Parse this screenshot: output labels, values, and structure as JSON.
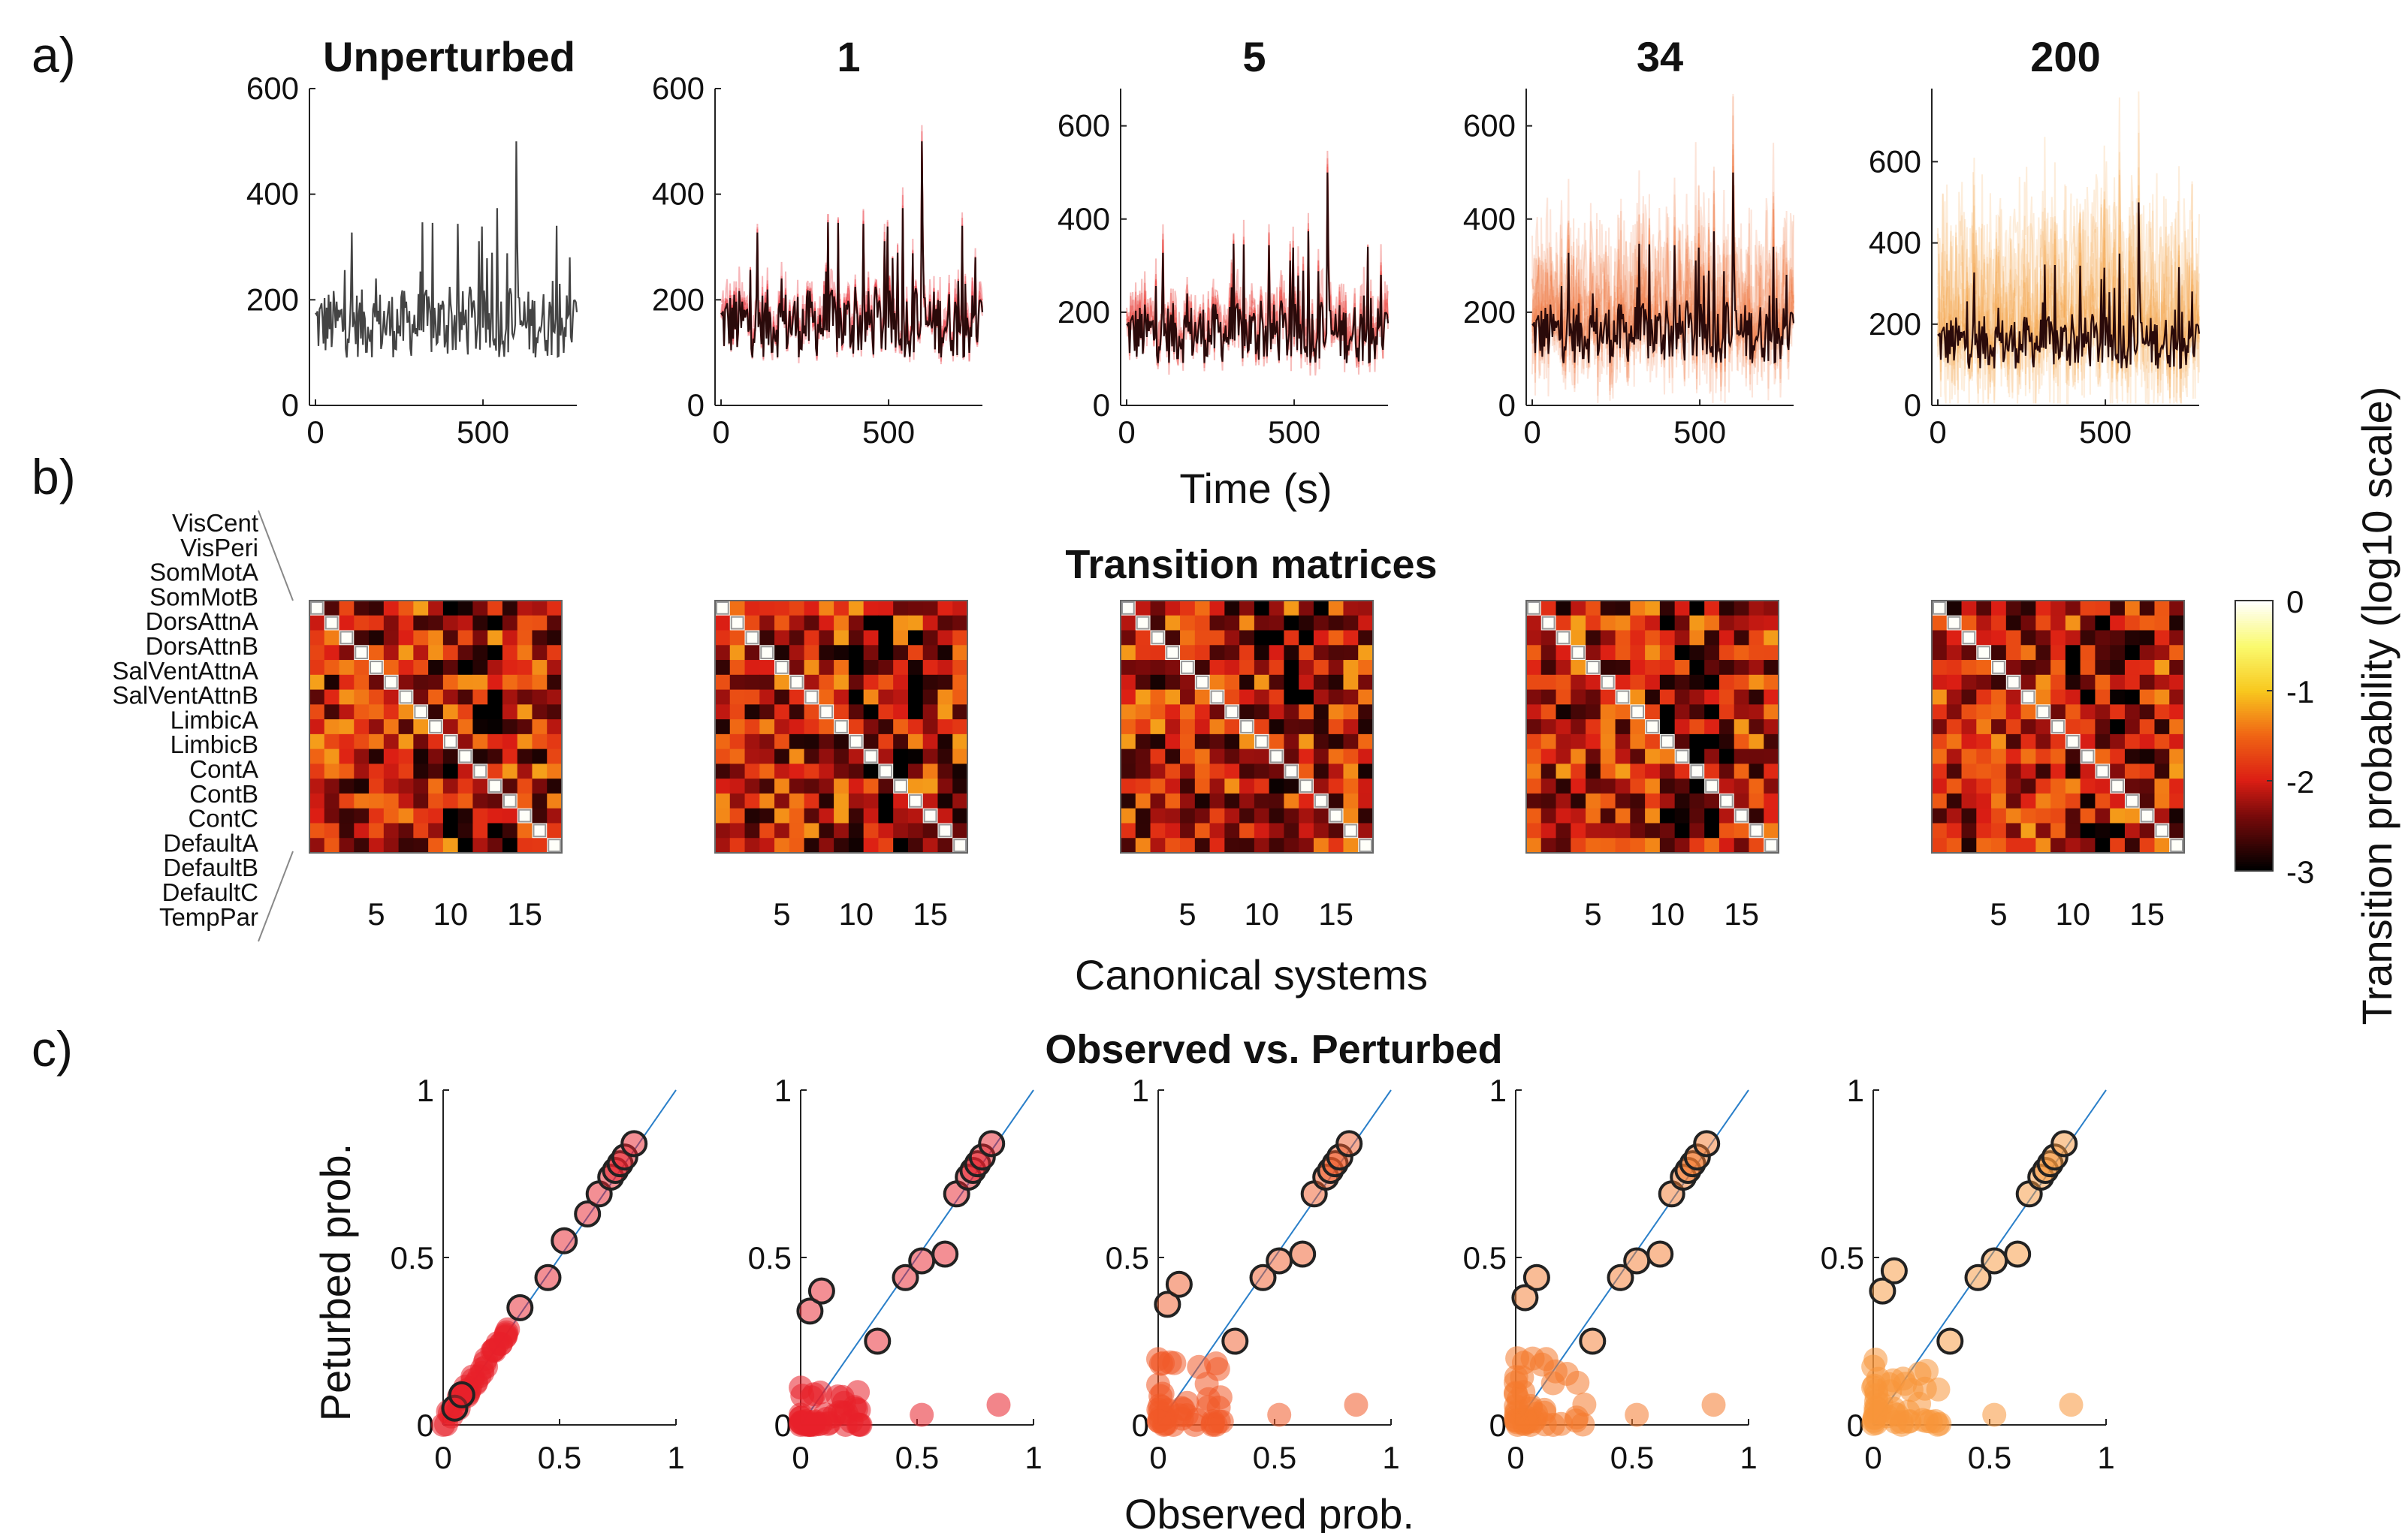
{
  "panel_labels": [
    "a)",
    "b)",
    "c)"
  ],
  "panel_a": {
    "x_axis_label": "Time (s)",
    "x_ticks": [
      "0",
      "500"
    ],
    "columns": [
      {
        "title": "Unperturbed",
        "y_ticks": [
          "0",
          "200",
          "400",
          "600"
        ],
        "ylim": [
          0,
          600
        ]
      },
      {
        "title": "1",
        "y_ticks": [
          "0",
          "200",
          "400",
          "600"
        ],
        "ylim": [
          0,
          600
        ]
      },
      {
        "title": "5",
        "y_ticks": [
          "0",
          "200",
          "400",
          "600"
        ],
        "ylim": [
          0,
          680
        ]
      },
      {
        "title": "34",
        "y_ticks": [
          "0",
          "200",
          "400",
          "600"
        ],
        "ylim": [
          0,
          680
        ]
      },
      {
        "title": "200",
        "y_ticks": [
          "0",
          "200",
          "400",
          "600"
        ],
        "ylim": [
          0,
          780
        ]
      }
    ]
  },
  "panel_b": {
    "title": "Transition matrices",
    "x_axis_label": "Canonical systems",
    "x_ticks": [
      "5",
      "10",
      "15"
    ],
    "systems": [
      "VisCent",
      "VisPeri",
      "SomMotA",
      "SomMotB",
      "DorsAttnA",
      "DorsAttnB",
      "SalVentAttnA",
      "SalVentAttnB",
      "LimbicA",
      "LimbicB",
      "ContA",
      "ContB",
      "ContC",
      "DefaultA",
      "DefaultB",
      "DefaultC",
      "TempPar"
    ],
    "colorbar_label": "Transition probability (log10 scale)",
    "colorbar_ticks": [
      "0",
      "-1",
      "-2",
      "-3"
    ],
    "colorbar_range": [
      -3,
      0
    ]
  },
  "panel_c": {
    "title": "Observed vs. Perturbed",
    "x_axis_label": "Observed prob.",
    "y_axis_label": "Peturbed prob.",
    "x_ticks": [
      "0",
      "0.5",
      "1"
    ],
    "y_ticks": [
      "0",
      "0.5",
      "1"
    ],
    "colors": [
      "#e8202a",
      "#e8202a",
      "#f05a28",
      "#f47a2e",
      "#f7963a"
    ]
  },
  "chart_data": [
    {
      "type": "line",
      "panel": "a",
      "description_series": [
        "Unperturbed",
        "1",
        "5",
        "34",
        "200"
      ],
      "x_range": [
        0,
        780
      ],
      "y_range": [
        0,
        600
      ],
      "peak": {
        "x": 600,
        "y": 500
      },
      "baseline_range": [
        50,
        320
      ]
    },
    {
      "type": "heatmap",
      "panel": "b",
      "size": 17,
      "value_range": [
        -3,
        0
      ]
    },
    {
      "type": "scatter",
      "panel": "c",
      "xlim": [
        0,
        1
      ],
      "ylim": [
        0,
        1
      ],
      "diagonal": true,
      "highlighted_points": [
        [
          0.05,
          0.05
        ],
        [
          0.08,
          0.09
        ],
        [
          0.33,
          0.35
        ],
        [
          0.45,
          0.44
        ],
        [
          0.52,
          0.55
        ],
        [
          0.62,
          0.63
        ],
        [
          0.67,
          0.69
        ],
        [
          0.72,
          0.74
        ],
        [
          0.74,
          0.76
        ],
        [
          0.76,
          0.78
        ],
        [
          0.78,
          0.8
        ],
        [
          0.82,
          0.84
        ]
      ]
    }
  ]
}
